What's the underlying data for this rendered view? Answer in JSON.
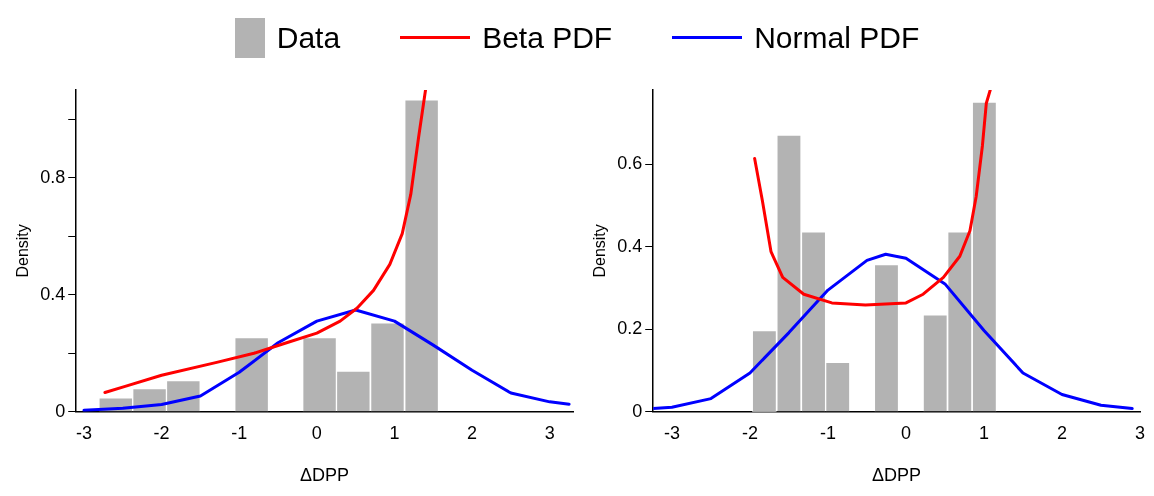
{
  "chart_data": [
    {
      "type": "histogram",
      "xlabel": "ΔDPP",
      "ylabel": "Density",
      "legend": "top",
      "marker": "none",
      "bins": [
        -2.81,
        -2.37,
        -1.94,
        -1.5,
        -1.06,
        -0.62,
        -0.18,
        0.25,
        0.69,
        1.13,
        1.57
      ],
      "xlim": [
        -3.1,
        3.3
      ],
      "xticks": [
        -3,
        -2,
        -1,
        0,
        1,
        2,
        3
      ],
      "ylim": [
        0,
        1.1
      ],
      "yticks": [
        0,
        {
          "value": 0.2,
          "label": null
        },
        0.4,
        {
          "value": 0.6,
          "label": null
        },
        0.8,
        {
          "value": 1.0,
          "label": null
        }
      ],
      "series": [
        {
          "name": "Data",
          "type": "histogram",
          "color": "#b3b3b3",
          "values": [
            0.048,
            0.079,
            0.107,
            0,
            0.254,
            0,
            0.254,
            0.139,
            0.304,
            1.066
          ]
        },
        {
          "name": "Beta PDF",
          "type": "line",
          "color": "#ff0000",
          "x": [
            -2.73,
            -2.47,
            -2.0,
            -1.29,
            -0.81,
            -0.39,
            0,
            0.3,
            0.52,
            0.73,
            0.94,
            1.1,
            1.21,
            1.31,
            1.4
          ],
          "values": [
            0.066,
            0.087,
            0.125,
            0.169,
            0.2,
            0.236,
            0.269,
            0.31,
            0.355,
            0.415,
            0.504,
            0.609,
            0.743,
            0.937,
            1.1
          ]
        },
        {
          "name": "Normal PDF",
          "type": "line",
          "color": "#0000ff",
          "x": [
            -3,
            -2.5,
            -2,
            -1.5,
            -1,
            -0.5,
            0,
            0.5,
            1,
            1.5,
            2,
            2.5,
            3,
            3.25
          ],
          "values": [
            0.005,
            0.012,
            0.025,
            0.054,
            0.135,
            0.236,
            0.31,
            0.348,
            0.31,
            0.228,
            0.142,
            0.064,
            0.034,
            0.026
          ]
        }
      ]
    },
    {
      "type": "histogram",
      "xlabel": "ΔDPP",
      "ylabel": "Density",
      "marker": "none",
      "bins": [
        -1.97,
        -1.66,
        -1.34,
        -1.03,
        -0.72,
        -0.41,
        -0.09,
        0.22,
        0.53,
        0.85,
        1.16
      ],
      "xlim": [
        -3.24,
        3.0
      ],
      "xticks": [
        -3,
        -2,
        -1,
        0,
        1,
        2,
        3
      ],
      "ylim": [
        0,
        0.78
      ],
      "yticks": [
        0,
        0.2,
        0.4,
        0.6
      ],
      "series": [
        {
          "type": "histogram",
          "color": "#b3b3b3",
          "values": [
            0.197,
            0.671,
            0.436,
            0.12,
            0,
            0.357,
            0,
            0.235,
            0.436,
            0.751
          ]
        },
        {
          "type": "line",
          "color": "#ff0000",
          "x": [
            -1.94,
            -1.84,
            -1.73,
            -1.58,
            -1.31,
            -0.95,
            -0.52,
            0,
            0.22,
            0.48,
            0.69,
            0.82,
            0.9,
            0.98,
            1.03,
            1.08
          ],
          "values": [
            0.614,
            0.511,
            0.388,
            0.326,
            0.285,
            0.264,
            0.259,
            0.264,
            0.285,
            0.326,
            0.377,
            0.439,
            0.522,
            0.645,
            0.748,
            0.78
          ]
        },
        {
          "type": "line",
          "color": "#0000ff",
          "x": [
            -3.24,
            -3,
            -2.5,
            -2,
            -1.5,
            -1,
            -0.5,
            -0.26,
            0,
            0.5,
            1,
            1.5,
            2,
            2.5,
            2.9
          ],
          "values": [
            0.008,
            0.011,
            0.032,
            0.094,
            0.192,
            0.295,
            0.367,
            0.382,
            0.372,
            0.31,
            0.197,
            0.094,
            0.042,
            0.016,
            0.008
          ]
        }
      ]
    }
  ]
}
